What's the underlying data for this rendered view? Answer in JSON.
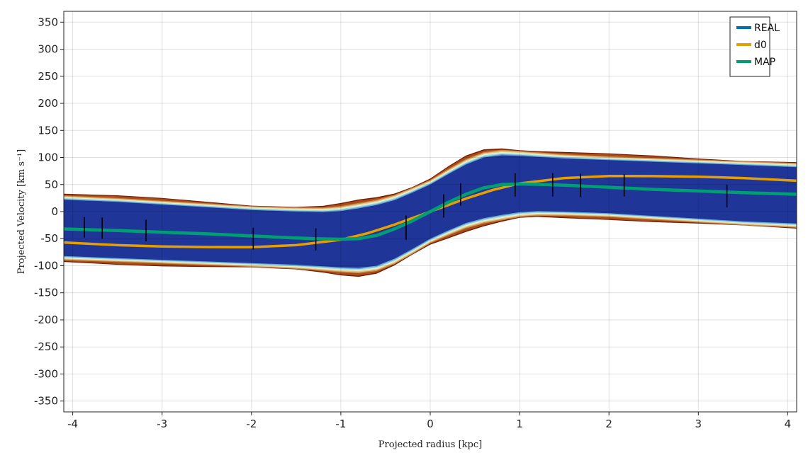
{
  "chart_data": {
    "type": "line",
    "xlabel": "Projected radius [kpc]",
    "ylabel": "Projected Velocity [km s⁻¹]",
    "xlim": [
      -4.1,
      4.1
    ],
    "ylim": [
      -370,
      370
    ],
    "x_ticks": [
      -4,
      -3,
      -2,
      -1,
      0,
      1,
      2,
      3,
      4
    ],
    "y_ticks": [
      -350,
      -300,
      -250,
      -200,
      -150,
      -100,
      -50,
      0,
      50,
      100,
      150,
      200,
      250,
      300,
      350
    ],
    "grid": true,
    "legend_position": "top-right",
    "legend": [
      "REAL",
      "d0",
      "MAP"
    ],
    "colors": {
      "REAL": "#0072b2",
      "d0": "#e69f00",
      "MAP": "#009e73",
      "band_core": "#1f3597",
      "band_shades": [
        "#7a1c04",
        "#a84c18",
        "#c9894a",
        "#e0c98e",
        "#e8f2c8",
        "#a9d6e8",
        "#5fa8d0"
      ],
      "error_bar": "#000000"
    },
    "series": [
      {
        "name": "REAL",
        "x": [
          -4.1,
          -3.5,
          -3.0,
          -2.5,
          -2.0,
          -1.6,
          -1.3,
          -1.0,
          -0.8,
          -0.6,
          -0.4,
          -0.2,
          0.0,
          0.2,
          0.4,
          0.6,
          0.8,
          1.0,
          1.3,
          1.6,
          2.0,
          2.5,
          3.0,
          3.5,
          4.1
        ],
        "y": [
          -32,
          -35,
          -38,
          -41,
          -45,
          -48,
          -50,
          -51,
          -50,
          -44,
          -32,
          -17,
          0,
          17,
          32,
          44,
          50,
          51,
          50,
          48,
          45,
          41,
          38,
          35,
          32
        ]
      },
      {
        "name": "d0",
        "x": [
          -4.1,
          -3.5,
          -3.0,
          -2.5,
          -2.2,
          -2.0,
          -1.5,
          -1.0,
          -0.7,
          -0.4,
          -0.2,
          0.0,
          0.2,
          0.4,
          0.7,
          1.0,
          1.5,
          2.0,
          2.2,
          2.5,
          3.0,
          3.5,
          4.1
        ],
        "y": [
          -57,
          -62,
          -64.5,
          -65.5,
          -65.8,
          -65.6,
          -62,
          -52,
          -40,
          -24,
          -12,
          0,
          12,
          24,
          40,
          52,
          62,
          65.6,
          65.8,
          65.5,
          64.5,
          62,
          57
        ]
      },
      {
        "name": "MAP",
        "x": [
          -4.1,
          -3.5,
          -3.0,
          -2.5,
          -2.0,
          -1.6,
          -1.3,
          -1.0,
          -0.8,
          -0.6,
          -0.4,
          -0.2,
          0.0,
          0.2,
          0.4,
          0.6,
          0.8,
          1.0,
          1.3,
          1.6,
          2.0,
          2.5,
          3.0,
          3.5,
          4.1
        ],
        "y": [
          -32,
          -35,
          -38,
          -41,
          -45,
          -48,
          -50,
          -51,
          -50,
          -44,
          -32,
          -17,
          0,
          17,
          32,
          44,
          50,
          51,
          50,
          48,
          45,
          41,
          38,
          35,
          32
        ]
      }
    ],
    "error_bars": [
      {
        "x": -3.87,
        "y_low": -48,
        "y_high": -10
      },
      {
        "x": -3.67,
        "y_low": -50,
        "y_high": -11
      },
      {
        "x": -3.18,
        "y_low": -55,
        "y_high": -15
      },
      {
        "x": -1.98,
        "y_low": -70,
        "y_high": -30
      },
      {
        "x": -1.28,
        "y_low": -72,
        "y_high": -31
      },
      {
        "x": -0.27,
        "y_low": -52,
        "y_high": -7
      },
      {
        "x": 0.15,
        "y_low": -11,
        "y_high": 32
      },
      {
        "x": 0.34,
        "y_low": 11,
        "y_high": 52
      },
      {
        "x": 0.95,
        "y_low": 28,
        "y_high": 71
      },
      {
        "x": 1.37,
        "y_low": 28,
        "y_high": 71
      },
      {
        "x": 1.68,
        "y_low": 27,
        "y_high": 70
      },
      {
        "x": 2.17,
        "y_low": 28,
        "y_high": 69
      },
      {
        "x": 3.32,
        "y_low": 8,
        "y_high": 50
      }
    ],
    "band": {
      "x": [
        -4.1,
        -3.5,
        -3.0,
        -2.5,
        -2.0,
        -1.5,
        -1.2,
        -1.0,
        -0.8,
        -0.6,
        -0.4,
        -0.2,
        0.0,
        0.2,
        0.4,
        0.6,
        0.8,
        1.0,
        1.2,
        1.5,
        2.0,
        2.5,
        3.0,
        3.5,
        4.1
      ],
      "center": [
        -30,
        -34,
        -38,
        -42,
        -46,
        -49,
        -51,
        -51,
        -49,
        -44,
        -33,
        -17,
        0,
        17,
        33,
        44,
        49,
        51,
        51,
        49,
        46,
        42,
        38,
        34,
        30
      ],
      "core_half_width": [
        52,
        52,
        51,
        50,
        49,
        49,
        50,
        52,
        55,
        56,
        54,
        52,
        50,
        52,
        54,
        56,
        55,
        52,
        50,
        49,
        49,
        50,
        51,
        52,
        52
      ],
      "outer_half_width": [
        63,
        62,
        61,
        60,
        59,
        60,
        62,
        65,
        69,
        70,
        68,
        65,
        62,
        65,
        68,
        70,
        69,
        65,
        62,
        60,
        59,
        60,
        61,
        62,
        63
      ]
    }
  }
}
